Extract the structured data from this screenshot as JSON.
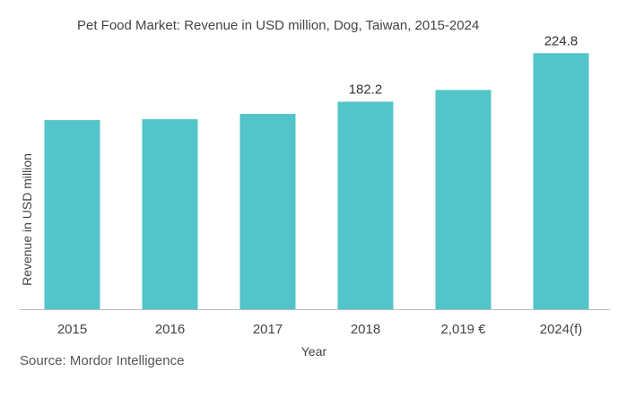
{
  "chart_data": {
    "type": "bar",
    "title": "Pet Food Market: Revenue in USD million, Dog, Taiwan, 2015-2024",
    "xlabel": "Year",
    "ylabel": "Revenue in USD million",
    "categories": [
      "2015",
      "2016",
      "2017",
      "2018",
      "2,019 €",
      "2024(f)"
    ],
    "values": [
      166.0,
      166.8,
      171.5,
      182.2,
      192.5,
      224.8
    ],
    "data_labels": [
      "",
      "",
      "",
      "182.2",
      "",
      "224.8"
    ],
    "ylim": [
      0,
      240
    ],
    "grid": false,
    "legend": "none",
    "bar_color": "#53C4C9",
    "axis_color": "#BBBBBB"
  },
  "source": "Source: Mordor Intelligence"
}
